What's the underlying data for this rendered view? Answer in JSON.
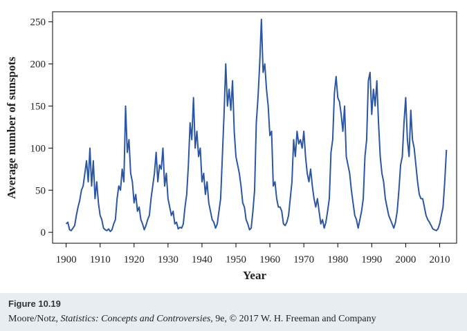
{
  "chart_data": {
    "type": "line",
    "xlabel": "Year",
    "ylabel": "Average number of sunspots",
    "color": "#2b56a3",
    "x": [
      1900,
      1900.5,
      1901,
      1901.5,
      1902,
      1902.5,
      1903,
      1903.5,
      1904,
      1904.5,
      1905,
      1905.5,
      1906,
      1906.5,
      1907,
      1907.5,
      1908,
      1908.5,
      1909,
      1909.5,
      1910,
      1910.5,
      1911,
      1911.5,
      1912,
      1912.5,
      1913,
      1913.5,
      1914,
      1914.5,
      1915,
      1915.5,
      1916,
      1916.5,
      1917,
      1917.5,
      1918,
      1918.5,
      1919,
      1919.5,
      1920,
      1920.5,
      1921,
      1921.5,
      1922,
      1922.5,
      1923,
      1923.5,
      1924,
      1924.5,
      1925,
      1925.5,
      1926,
      1926.5,
      1927,
      1927.5,
      1928,
      1928.5,
      1929,
      1929.5,
      1930,
      1930.5,
      1931,
      1931.5,
      1932,
      1932.5,
      1933,
      1933.5,
      1934,
      1934.5,
      1935,
      1935.5,
      1936,
      1936.5,
      1937,
      1937.5,
      1938,
      1938.5,
      1939,
      1939.5,
      1940,
      1940.5,
      1941,
      1941.5,
      1942,
      1942.5,
      1943,
      1943.5,
      1944,
      1944.5,
      1945,
      1945.5,
      1946,
      1946.5,
      1947,
      1947.5,
      1948,
      1948.5,
      1949,
      1949.5,
      1950,
      1950.5,
      1951,
      1951.5,
      1952,
      1952.5,
      1953,
      1953.5,
      1954,
      1954.5,
      1955,
      1955.5,
      1956,
      1956.5,
      1957,
      1957.5,
      1958,
      1958.5,
      1959,
      1959.5,
      1960,
      1960.5,
      1961,
      1961.5,
      1962,
      1962.5,
      1963,
      1963.5,
      1964,
      1964.5,
      1965,
      1965.5,
      1966,
      1966.5,
      1967,
      1967.5,
      1968,
      1968.5,
      1969,
      1969.5,
      1970,
      1970.5,
      1971,
      1971.5,
      1972,
      1972.5,
      1973,
      1973.5,
      1974,
      1974.5,
      1975,
      1975.5,
      1976,
      1976.5,
      1977,
      1977.5,
      1978,
      1978.5,
      1979,
      1979.5,
      1980,
      1980.5,
      1981,
      1981.5,
      1982,
      1982.5,
      1983,
      1983.5,
      1984,
      1984.5,
      1985,
      1985.5,
      1986,
      1986.5,
      1987,
      1987.5,
      1988,
      1988.5,
      1989,
      1989.5,
      1990,
      1990.5,
      1991,
      1991.5,
      1992,
      1992.5,
      1993,
      1993.5,
      1994,
      1994.5,
      1995,
      1995.5,
      1996,
      1996.5,
      1997,
      1997.5,
      1998,
      1998.5,
      1999,
      1999.5,
      2000,
      2000.5,
      2001,
      2001.5,
      2002,
      2002.5,
      2003,
      2003.5,
      2004,
      2004.5,
      2005,
      2005.5,
      2006,
      2006.5,
      2007,
      2007.5,
      2008,
      2008.5,
      2009,
      2009.5,
      2010,
      2010.5,
      2011,
      2011.5,
      2012
    ],
    "values": [
      10,
      12,
      3,
      2,
      5,
      8,
      20,
      30,
      38,
      50,
      55,
      70,
      85,
      60,
      100,
      55,
      85,
      40,
      60,
      35,
      20,
      15,
      5,
      3,
      2,
      4,
      1,
      3,
      10,
      15,
      40,
      55,
      50,
      75,
      60,
      150,
      95,
      110,
      70,
      60,
      35,
      45,
      25,
      30,
      15,
      10,
      3,
      8,
      15,
      20,
      40,
      55,
      70,
      95,
      60,
      80,
      75,
      100,
      55,
      70,
      40,
      30,
      20,
      25,
      10,
      12,
      4,
      6,
      5,
      10,
      30,
      45,
      80,
      130,
      110,
      160,
      100,
      120,
      90,
      100,
      60,
      70,
      45,
      60,
      35,
      25,
      15,
      12,
      5,
      10,
      25,
      40,
      90,
      140,
      200,
      150,
      170,
      145,
      180,
      120,
      90,
      80,
      70,
      55,
      35,
      30,
      15,
      10,
      3,
      5,
      25,
      50,
      130,
      160,
      200,
      253,
      190,
      200,
      170,
      150,
      115,
      120,
      55,
      60,
      40,
      30,
      30,
      25,
      10,
      8,
      12,
      20,
      40,
      60,
      110,
      90,
      120,
      105,
      110,
      100,
      120,
      90,
      70,
      60,
      75,
      55,
      40,
      30,
      40,
      25,
      10,
      15,
      5,
      12,
      25,
      40,
      95,
      110,
      165,
      185,
      160,
      155,
      140,
      120,
      150,
      90,
      80,
      70,
      50,
      35,
      20,
      15,
      5,
      15,
      25,
      40,
      90,
      110,
      180,
      190,
      140,
      170,
      150,
      180,
      130,
      90,
      70,
      60,
      40,
      30,
      20,
      15,
      10,
      5,
      12,
      25,
      50,
      80,
      90,
      130,
      160,
      110,
      90,
      145,
      110,
      100,
      80,
      60,
      45,
      40,
      40,
      30,
      20,
      15,
      12,
      8,
      4,
      3,
      2,
      4,
      10,
      20,
      30,
      60,
      98
    ],
    "xlim": [
      1896,
      2015
    ],
    "ylim": [
      -13,
      262
    ],
    "xticks": [
      1900,
      1910,
      1920,
      1930,
      1940,
      1950,
      1960,
      1970,
      1980,
      1990,
      2000,
      2010
    ],
    "yticks": [
      0,
      50,
      100,
      150,
      200,
      250
    ]
  },
  "caption": {
    "figure_label": "Figure 10.19",
    "credit_before": "Moore/Notz, ",
    "credit_title": "Statistics: Concepts and Controversies,",
    "credit_after": " 9e, © 2017 W. H. Freeman and Company"
  }
}
